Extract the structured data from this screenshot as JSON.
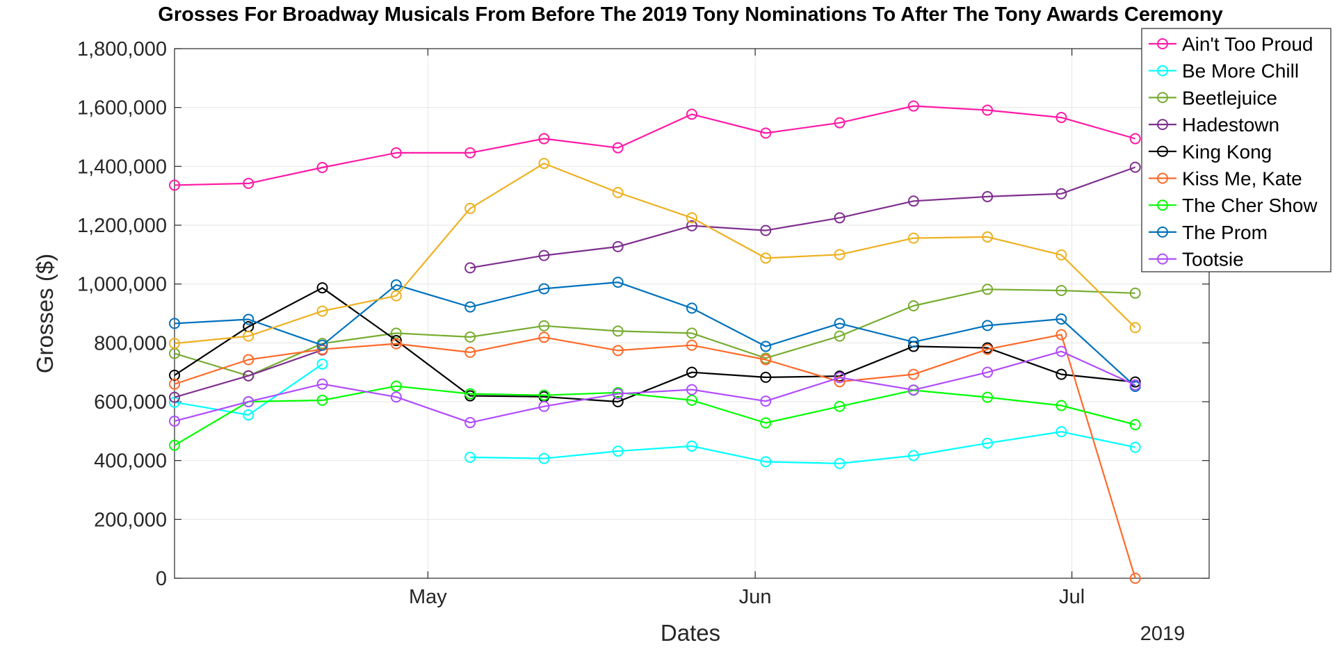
{
  "chart_data": {
    "type": "line",
    "title": "Grosses For Broadway Musicals From Before The 2019 Tony Nominations To After The Tony Awards Ceremony",
    "xlabel": "Dates",
    "ylabel": "Grosses ($)",
    "x_secondary_label": "2019",
    "x_ticks": [
      {
        "date": "2019-05-01",
        "label": "May"
      },
      {
        "date": "2019-06-01",
        "label": "Jun"
      },
      {
        "date": "2019-07-01",
        "label": "Jul"
      }
    ],
    "xlim": [
      "2019-04-07",
      "2019-07-14"
    ],
    "ylim": [
      0,
      1800000
    ],
    "y_ticks": [
      0,
      200000,
      400000,
      600000,
      800000,
      1000000,
      1200000,
      1400000,
      1600000,
      1800000
    ],
    "y_tick_labels": [
      "0",
      "200,000",
      "400,000",
      "600,000",
      "800,000",
      "1,000,000",
      "1,200,000",
      "1,400,000",
      "1,600,000",
      "1,800,000"
    ],
    "grid": true,
    "legend_position": "top-right",
    "marker": "circle",
    "x": [
      "2019-04-07",
      "2019-04-14",
      "2019-04-21",
      "2019-04-28",
      "2019-05-05",
      "2019-05-12",
      "2019-05-19",
      "2019-05-26",
      "2019-06-02",
      "2019-06-09",
      "2019-06-16",
      "2019-06-23",
      "2019-06-30",
      "2019-07-07"
    ],
    "series": [
      {
        "name": "Ain't Too Proud",
        "color": "#ff19a6",
        "values": [
          1336000,
          1342000,
          1396000,
          1446000,
          1446000,
          1494000,
          1463000,
          1577000,
          1513000,
          1548000,
          1605000,
          1591000,
          1566000,
          1494000
        ]
      },
      {
        "name": "Be More Chill",
        "color": "#00ffff",
        "values": [
          598000,
          555000,
          728000,
          null,
          411000,
          407000,
          432000,
          449000,
          396000,
          390000,
          417000,
          459000,
          498000,
          445000
        ]
      },
      {
        "name": "Beetlejuice",
        "color": "#77ac30",
        "values": [
          764000,
          688000,
          798000,
          833000,
          820000,
          858000,
          840000,
          833000,
          748000,
          823000,
          926000,
          982000,
          978000,
          969000
        ]
      },
      {
        "name": "Hadestown",
        "color": "#7e2f8e",
        "values": [
          615000,
          688000,
          776000,
          null,
          1055000,
          1097000,
          1127000,
          1198000,
          1182000,
          1225000,
          1282000,
          1297000,
          1307000,
          1397000
        ]
      },
      {
        "name": "King Kong",
        "color": "#000000",
        "values": [
          690000,
          855000,
          987000,
          808000,
          620000,
          617000,
          600000,
          700000,
          683000,
          687000,
          788000,
          783000,
          693000,
          667000
        ]
      },
      {
        "name": "Kiss Me, Kate",
        "color": "#ff6929",
        "values": [
          660000,
          743000,
          778000,
          797000,
          768000,
          819000,
          774000,
          792000,
          743000,
          668000,
          693000,
          778000,
          828000,
          0
        ]
      },
      {
        "name": "The Cher Show",
        "color": "#00ff00",
        "values": [
          452000,
          600000,
          605000,
          653000,
          627000,
          622000,
          631000,
          605000,
          528000,
          584000,
          639000,
          615000,
          587000,
          522000
        ]
      },
      {
        "name": "The Prom",
        "color": "#0072bd",
        "values": [
          866000,
          880000,
          792000,
          997000,
          922000,
          984000,
          1006000,
          918000,
          788000,
          866000,
          803000,
          859000,
          881000,
          652000
        ]
      },
      {
        "name": "Tootsie",
        "color": "#b04cff",
        "values": [
          534000,
          600000,
          660000,
          616000,
          529000,
          584000,
          627000,
          641000,
          602000,
          682000,
          640000,
          700000,
          771000,
          657000
        ]
      },
      {
        "name": "",
        "legend": false,
        "color": "#edb120",
        "values": [
          798000,
          823000,
          908000,
          960000,
          1257000,
          1410000,
          1311000,
          1225000,
          1088000,
          1100000,
          1156000,
          1160000,
          1099000,
          852000
        ]
      }
    ]
  }
}
